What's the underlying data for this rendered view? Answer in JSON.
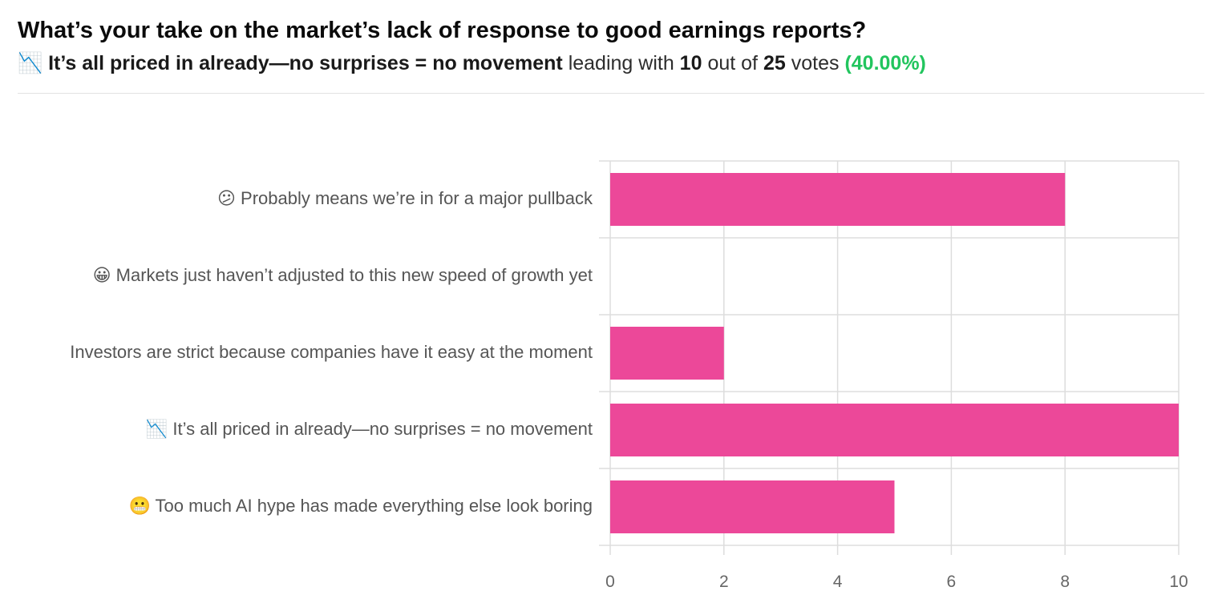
{
  "header": {
    "question": "What’s your take on the market’s lack of response to good earnings reports?",
    "leader_icon": "📉",
    "leader_label": "It’s all priced in already—no surprises = no movement",
    "leading_with_text": "leading with",
    "leader_votes": "10",
    "out_of_text": "out of",
    "total_votes": "25",
    "votes_text": "votes",
    "leader_percent": "(40.00%)"
  },
  "colors": {
    "bar": "#ec4899",
    "grid": "#dddddd",
    "percent": "#22c55e"
  },
  "chart_data": {
    "type": "bar",
    "orientation": "horizontal",
    "categories": [
      "😕  Probably means we’re in for a major pullback",
      "😀  Markets just haven’t adjusted to this new speed of growth yet",
      "Investors are strict because companies have it easy at the moment",
      "📉  It’s all priced in already—no surprises = no movement",
      "😬  Too much AI hype has made everything else look boring"
    ],
    "values": [
      8,
      0,
      2,
      10,
      5
    ],
    "xlim": [
      0,
      10
    ],
    "xticks": [
      "0",
      "2",
      "4",
      "6",
      "8",
      "10"
    ],
    "grid": true,
    "title": "",
    "xlabel": "",
    "ylabel": ""
  }
}
